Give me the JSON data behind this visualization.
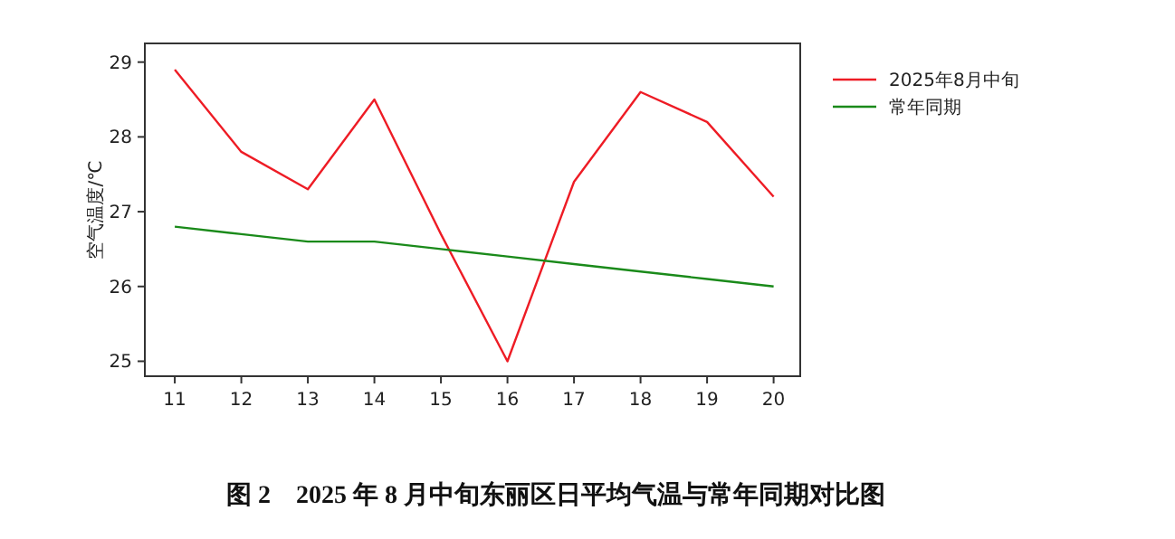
{
  "chart_data": {
    "type": "line",
    "title": "图 2　2025 年 8 月中旬东丽区日平均气温与常年同期对比图",
    "ylabel": "空气温度/℃",
    "x": [
      11,
      12,
      13,
      14,
      15,
      16,
      17,
      18,
      19,
      20
    ],
    "series": [
      {
        "name": "2025年8月中旬",
        "color": "#ee1c25",
        "values": [
          28.9,
          27.8,
          27.3,
          28.5,
          26.7,
          25.0,
          27.4,
          28.6,
          28.2,
          27.2
        ]
      },
      {
        "name": "常年同期",
        "color": "#1a8a1a",
        "values": [
          26.8,
          26.7,
          26.6,
          26.6,
          26.5,
          26.4,
          26.3,
          26.2,
          26.1,
          26.0
        ]
      }
    ],
    "xlim": [
      10.55,
      20.4
    ],
    "xticks": [
      11,
      12,
      13,
      14,
      15,
      16,
      17,
      18,
      19,
      20
    ],
    "ylim": [
      24.8,
      29.25
    ],
    "yticks": [
      25,
      26,
      27,
      28,
      29
    ],
    "grid": false,
    "legend": "top right",
    "marker": "none",
    "line_style": "solid"
  }
}
